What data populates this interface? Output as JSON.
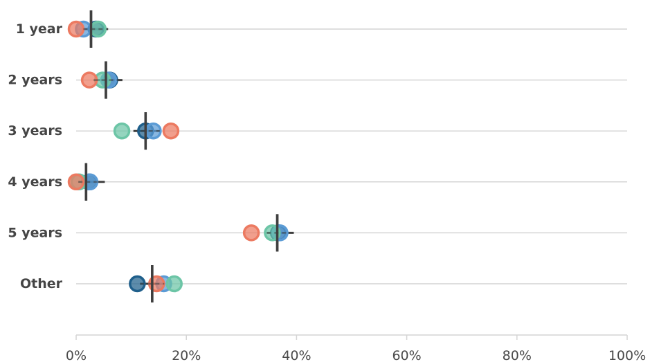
{
  "chart_data": {
    "type": "scatter",
    "title": "",
    "xlabel": "",
    "ylabel": "",
    "xlim": [
      0,
      100
    ],
    "grid": true,
    "categories": [
      "1 year",
      "2 years",
      "3 years",
      "4 years",
      "5 years",
      "Other"
    ],
    "x_ticks": [
      0,
      20,
      40,
      60,
      80,
      100
    ],
    "x_tick_labels": [
      "0%",
      "20%",
      "40%",
      "60%",
      "80%",
      "100%"
    ],
    "reference": {
      "marker": "vertical-bar",
      "values": [
        2.7,
        5.4,
        12.6,
        1.8,
        36.5,
        13.8
      ],
      "error_low": [
        1.3,
        3.2,
        10.4,
        0.4,
        34.6,
        11.6
      ],
      "error_high": [
        5.8,
        8.4,
        15.2,
        5.2,
        39.5,
        16.0
      ]
    },
    "series": [
      {
        "color": "#1f5f8b",
        "values": [
          3.6,
          6.1,
          12.6,
          2.4,
          36.7,
          11.1
        ]
      },
      {
        "color": "#5b9bd5",
        "values": [
          1.3,
          5.9,
          14.0,
          2.5,
          37.0,
          15.9
        ]
      },
      {
        "color": "#6cc5a6",
        "values": [
          4.0,
          4.8,
          8.3,
          0.5,
          35.6,
          17.8
        ]
      },
      {
        "color": "#ec7a61",
        "values": [
          0.0,
          2.4,
          17.2,
          0.0,
          31.8,
          14.6
        ]
      }
    ]
  }
}
